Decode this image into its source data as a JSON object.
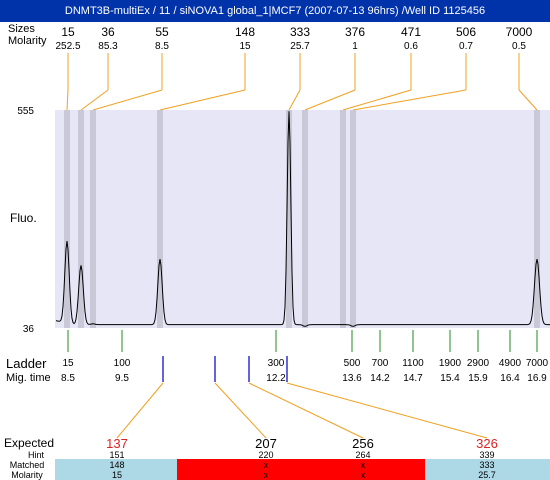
{
  "header": {
    "title": "DNMT3B-multiEx / 11 / siNOVA1 global_1|MCF7 (2007-07-13 96hrs) /Well ID 1125456"
  },
  "top_labels": {
    "sizes": "Sizes",
    "molarity": "Molarity"
  },
  "fluo_label": "Fluo.",
  "y_ticks": {
    "top": "555",
    "bottom": "36"
  },
  "peaks_top": [
    {
      "size": "15",
      "molarity": "252.5"
    },
    {
      "size": "36",
      "molarity": "85.3"
    },
    {
      "size": "55",
      "molarity": "8.5"
    },
    {
      "size": "148",
      "molarity": "15"
    },
    {
      "size": "333",
      "molarity": "25.7"
    },
    {
      "size": "376",
      "molarity": "1"
    },
    {
      "size": "471",
      "molarity": "0.6"
    },
    {
      "size": "506",
      "molarity": "0.7"
    },
    {
      "size": "7000",
      "molarity": "0.5"
    }
  ],
  "ladder": {
    "label": "Ladder",
    "mig_label": "Mig. time",
    "items": [
      {
        "size": "15",
        "time": "8.5"
      },
      {
        "size": "100",
        "time": "9.5"
      },
      {
        "size": "300",
        "time": "12.2"
      },
      {
        "size": "500",
        "time": "13.6"
      },
      {
        "size": "700",
        "time": "14.2"
      },
      {
        "size": "1100",
        "time": "14.7"
      },
      {
        "size": "1900",
        "time": "15.4"
      },
      {
        "size": "2900",
        "time": "15.9"
      },
      {
        "size": "4900",
        "time": "16.4"
      },
      {
        "size": "7000",
        "time": "16.9"
      }
    ]
  },
  "expected": {
    "labels": {
      "expected": "Expected",
      "hint": "Hint",
      "matched": "Matched",
      "molarity": "Molarity"
    },
    "columns": [
      {
        "expected": "137",
        "expected_red": true,
        "hint": "151",
        "matched": "148",
        "molarity": "15",
        "status": "ok"
      },
      {
        "expected": "207",
        "expected_red": false,
        "hint": "220",
        "matched": "x",
        "molarity": "x",
        "status": "fail"
      },
      {
        "expected": "256",
        "expected_red": false,
        "hint": "264",
        "matched": "x",
        "molarity": "x",
        "status": "fail"
      },
      {
        "expected": "326",
        "expected_red": true,
        "hint": "339",
        "matched": "333",
        "molarity": "25.7",
        "status": "ok"
      }
    ]
  },
  "chart_data": {
    "type": "line",
    "ylim": [
      36,
      555
    ],
    "colors": {
      "plot_bg": "#e6e6f7",
      "band": "#c8c8d6",
      "trace": "#000000",
      "leader": "#f0a020",
      "ladder_tick": "#228822",
      "matched_tick": "#1010cc",
      "ok": "#add8e6",
      "fail": "#ff0000",
      "expected_red": "#dd2222",
      "title_bg": "#0033aa"
    }
  }
}
